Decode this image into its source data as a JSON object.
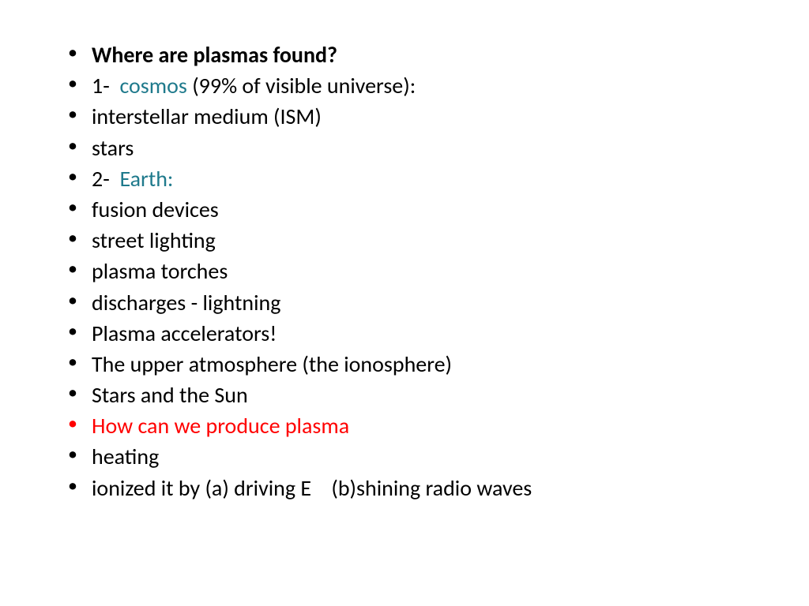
{
  "background_color": "#ffffff",
  "text_color": "#000000",
  "accent_teal": "#1f7a8c",
  "accent_red": "#ff0000",
  "font_family": "Calibri",
  "font_size_pt": 28,
  "line_height": 1.4,
  "bullets": [
    {
      "segments": [
        {
          "text": "Where are plasmas found?",
          "bold": true
        }
      ]
    },
    {
      "segments": [
        {
          "text": "1-  "
        },
        {
          "text": "cosmos",
          "teal": true
        },
        {
          "text": " (99% of visible universe):"
        }
      ]
    },
    {
      "segments": [
        {
          "text": "interstellar medium (ISM)"
        }
      ]
    },
    {
      "segments": [
        {
          "text": "stars"
        }
      ]
    },
    {
      "segments": [
        {
          "text": "2-  "
        },
        {
          "text": "Earth:",
          "teal": true
        }
      ]
    },
    {
      "segments": [
        {
          "text": "fusion devices"
        }
      ]
    },
    {
      "segments": [
        {
          "text": "street lighting"
        }
      ]
    },
    {
      "segments": [
        {
          "text": "plasma torches"
        }
      ]
    },
    {
      "segments": [
        {
          "text": "discharges - lightning"
        }
      ]
    },
    {
      "segments": [
        {
          "text": "Plasma accelerators!"
        }
      ]
    },
    {
      "segments": [
        {
          "text": "The upper atmosphere (the ionosphere)"
        }
      ]
    },
    {
      "segments": [
        {
          "text": "Stars and the Sun"
        }
      ]
    },
    {
      "red_bullet": true,
      "segments": [
        {
          "text": "How can we produce plasma",
          "red": true
        }
      ]
    },
    {
      "segments": [
        {
          "text": "heating"
        }
      ]
    },
    {
      "segments": [
        {
          "text": "ionized it by (a) driving E    (b)shining radio waves"
        }
      ]
    }
  ]
}
